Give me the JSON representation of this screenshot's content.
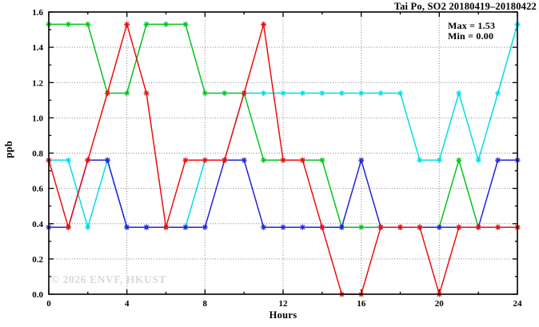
{
  "watermark": "© 2026 ENVF, HKUST",
  "chart_data": {
    "type": "line",
    "title": "Tai Po, SO2 20180419–20180422",
    "xlabel": "Hours",
    "ylabel": "ppb",
    "xlim": [
      0,
      24
    ],
    "ylim": [
      0.0,
      1.6
    ],
    "x_major_ticks": [
      0,
      4,
      8,
      12,
      16,
      20,
      24
    ],
    "x_minor_ticks": [
      2,
      6,
      10,
      14,
      18,
      22
    ],
    "y_major_ticks": [
      0.0,
      0.2,
      0.4,
      0.6,
      0.8,
      1.0,
      1.2,
      1.4,
      1.6
    ],
    "y_minor_ticks": [
      0.1,
      0.3,
      0.5,
      0.7,
      0.9,
      1.1,
      1.3,
      1.5
    ],
    "x_tick_labels": [
      "0",
      "4",
      "8",
      "12",
      "16",
      "20",
      "24"
    ],
    "y_tick_labels": [
      "0.0",
      "0.2",
      "0.4",
      "0.6",
      "0.8",
      "1.0",
      "1.2",
      "1.4",
      "1.6"
    ],
    "grid": "dotted",
    "legend": "none",
    "max": 1.53,
    "min": 0.0,
    "annotations": [
      "Max = 1.53",
      "Min = 0.00"
    ],
    "x": [
      0,
      1,
      2,
      3,
      4,
      5,
      6,
      7,
      8,
      9,
      10,
      11,
      12,
      13,
      14,
      15,
      16,
      17,
      18,
      19,
      20,
      21,
      22,
      23,
      24
    ],
    "series": [
      {
        "name": "series-green",
        "color": "#00c41e",
        "values": [
          1.53,
          1.53,
          1.53,
          1.14,
          1.14,
          1.53,
          1.53,
          1.53,
          1.14,
          1.14,
          1.14,
          0.76,
          0.76,
          0.76,
          0.76,
          0.38,
          0.38,
          0.38,
          0.38,
          0.38,
          0.38,
          0.76,
          0.38,
          0.38,
          0.38
        ]
      },
      {
        "name": "series-cyan",
        "color": "#00dce8",
        "values": [
          0.76,
          0.76,
          0.38,
          0.76,
          0.38,
          0.38,
          0.38,
          0.38,
          0.76,
          0.76,
          1.14,
          1.14,
          1.14,
          1.14,
          1.14,
          1.14,
          1.14,
          1.14,
          1.14,
          0.76,
          0.76,
          1.14,
          0.76,
          1.14,
          1.53
        ]
      },
      {
        "name": "series-blue",
        "color": "#2222dd",
        "values": [
          0.38,
          0.38,
          0.76,
          0.76,
          0.38,
          0.38,
          0.38,
          0.38,
          0.38,
          0.76,
          0.76,
          0.38,
          0.38,
          0.38,
          0.38,
          0.38,
          0.76,
          0.38,
          0.38,
          0.38,
          0.38,
          0.38,
          0.38,
          0.76,
          0.76
        ]
      },
      {
        "name": "series-red",
        "color": "#ee0c0c",
        "values": [
          0.76,
          0.38,
          0.76,
          1.14,
          1.53,
          1.14,
          0.38,
          0.76,
          0.76,
          0.76,
          1.14,
          1.53,
          0.76,
          0.76,
          0.38,
          0.0,
          0.0,
          0.38,
          0.38,
          0.38,
          0.0,
          0.38,
          0.38,
          0.38,
          0.38
        ]
      }
    ]
  }
}
